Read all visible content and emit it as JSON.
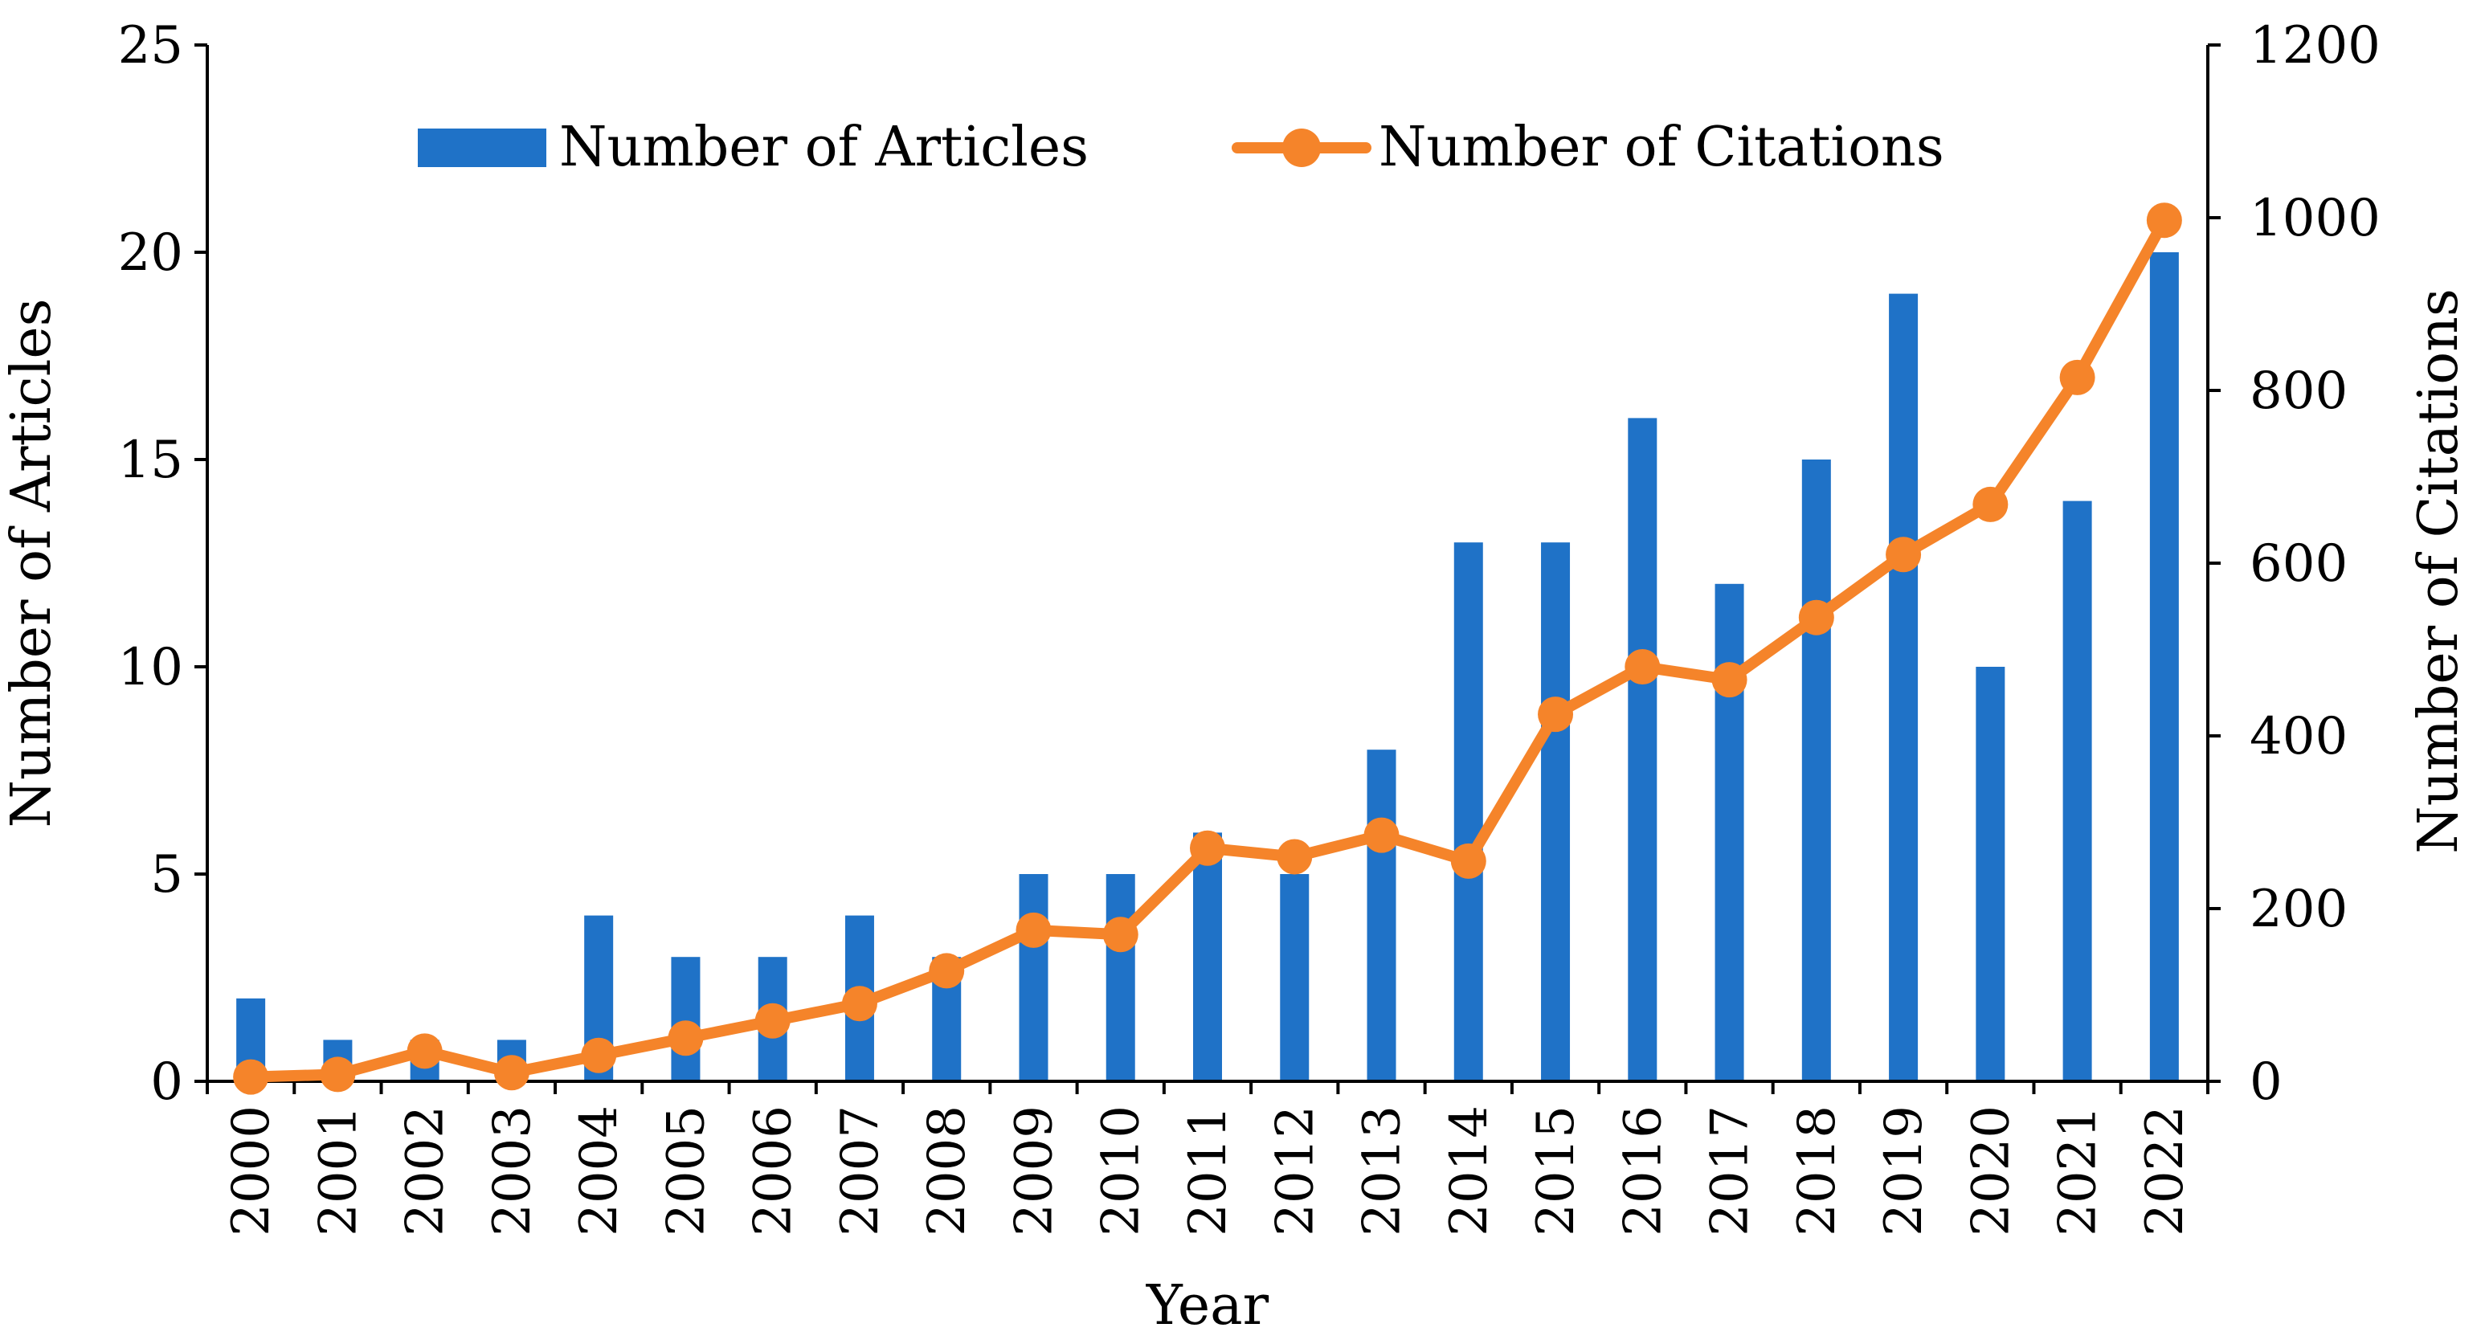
{
  "chart_data": {
    "type": "bar+line",
    "title": "",
    "xlabel": "Year",
    "ylabel": "Number of Articles",
    "y2label": "Number of Citations",
    "categories": [
      "2000",
      "2001",
      "2002",
      "2003",
      "2004",
      "2005",
      "2006",
      "2007",
      "2008",
      "2009",
      "2010",
      "2011",
      "2012",
      "2013",
      "2014",
      "2015",
      "2016",
      "2017",
      "2018",
      "2019",
      "2020",
      "2021",
      "2022"
    ],
    "ylim": [
      0,
      25
    ],
    "yticks": [
      0,
      5,
      10,
      15,
      20,
      25
    ],
    "y2lim": [
      0,
      1200
    ],
    "y2ticks": [
      0,
      200,
      400,
      600,
      800,
      1000,
      1200
    ],
    "series": [
      {
        "name": "Number of Articles",
        "type": "bar",
        "axis": "left",
        "color": "#1f72c7",
        "values": [
          2,
          1,
          1,
          1,
          4,
          3,
          3,
          4,
          3,
          5,
          5,
          6,
          5,
          8,
          13,
          13,
          16,
          12,
          15,
          19,
          10,
          14,
          20
        ]
      },
      {
        "name": "Number of Citations",
        "type": "line",
        "axis": "right",
        "color": "#f5842a",
        "values": [
          5,
          8,
          35,
          10,
          30,
          50,
          70,
          90,
          128,
          175,
          170,
          270,
          260,
          285,
          255,
          425,
          480,
          465,
          537,
          610,
          668,
          815,
          997
        ]
      }
    ],
    "legend": "top-center",
    "grid": false
  }
}
